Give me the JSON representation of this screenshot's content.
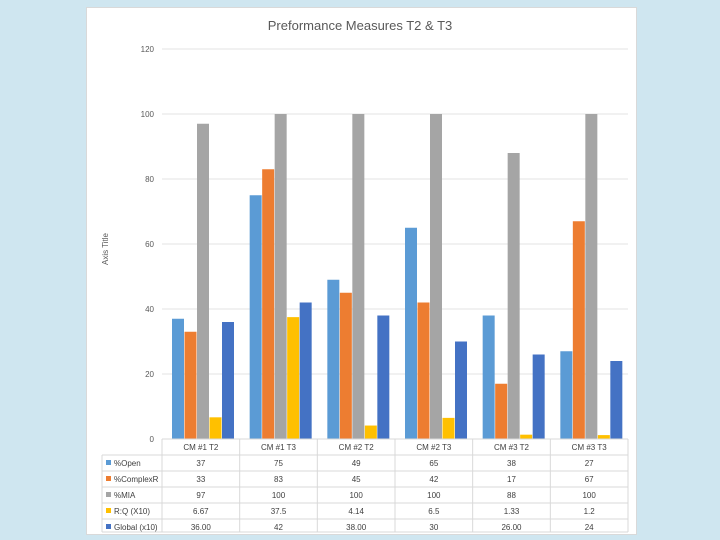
{
  "chart_data": {
    "type": "bar",
    "title": "Preformance Measures T2 & T3",
    "ylabel": "Axis Title",
    "xlabel": "",
    "ylim": [
      0,
      120
    ],
    "yticks": [
      0,
      20,
      40,
      60,
      80,
      100,
      120
    ],
    "grid": true,
    "legend": "data-table",
    "categories": [
      "CM #1 T2",
      "CM #1 T3",
      "CM #2 T2",
      "CM #2 T3",
      "CM #3 T2",
      "CM #3 T3"
    ],
    "series": [
      {
        "name": "%Open",
        "color": "#5b9bd5",
        "values": [
          37,
          75,
          49,
          65,
          38,
          27
        ],
        "labels": [
          "37",
          "75",
          "49",
          "65",
          "38",
          "27"
        ]
      },
      {
        "name": "%ComplexR",
        "color": "#ed7d31",
        "values": [
          33,
          83,
          45,
          42,
          17,
          67
        ],
        "labels": [
          "33",
          "83",
          "45",
          "42",
          "17",
          "67"
        ]
      },
      {
        "name": "%MIA",
        "color": "#a5a5a5",
        "values": [
          97,
          100,
          100,
          100,
          88,
          100
        ],
        "labels": [
          "97",
          "100",
          "100",
          "100",
          "88",
          "100"
        ]
      },
      {
        "name": "R:Q  (X10)",
        "color": "#ffc000",
        "values": [
          6.67,
          37.5,
          4.14,
          6.5,
          1.33,
          1.2
        ],
        "labels": [
          "6.67",
          "37.5",
          "4.14",
          "6.5",
          "1.33",
          "1.2"
        ]
      },
      {
        "name": "Global (x10)",
        "color": "#4472c4",
        "values": [
          36,
          42,
          38,
          30,
          26,
          24
        ],
        "labels": [
          "36.00",
          "42",
          "38.00",
          "30",
          "26.00",
          "24"
        ]
      }
    ]
  }
}
